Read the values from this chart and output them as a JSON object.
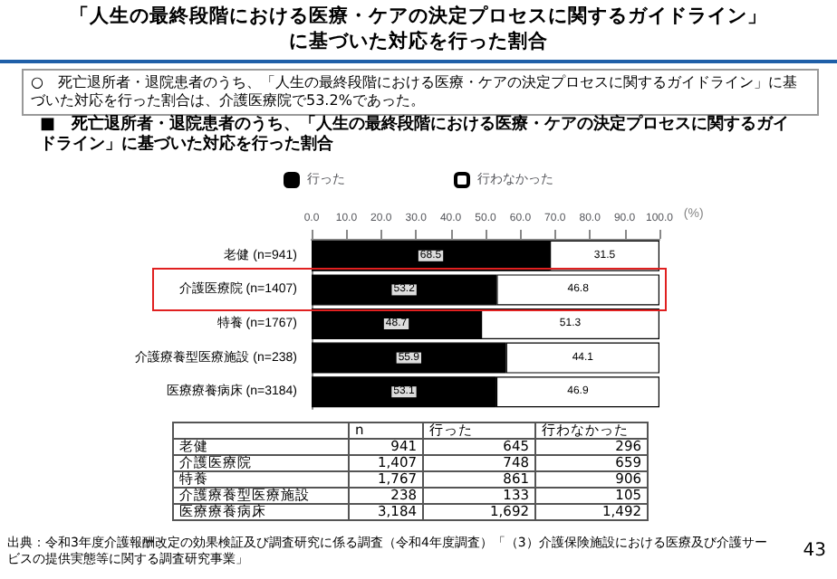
{
  "chart_data": {
    "type": "bar",
    "orientation": "horizontal",
    "stacked": true,
    "title": "「人生の最終段階における医療・ケアの決定プロセスに関するガイドライン」に基づいた対応を行った割合",
    "subtitle": "■　死亡退所者・退院患者のうち、「人生の最終段階における医療・ケアの決定プロセスに関するガイドライン」に基づいた対応を行った割合",
    "xlabel": "(%)",
    "categories": [
      "老健 (n=941)",
      "介護医療院 (n=1407)",
      "特養 (n=1767)",
      "介護療養型医療施設 (n=238)",
      "医療療養病床 (n=3184)"
    ],
    "series": [
      {
        "name": "行った",
        "color": "#000000",
        "values": [
          68.5,
          53.2,
          48.7,
          55.9,
          53.1
        ]
      },
      {
        "name": "行わなかった",
        "color": "#ffffff",
        "values": [
          31.5,
          46.8,
          51.3,
          44.1,
          46.9
        ]
      }
    ],
    "xlim": [
      0,
      100
    ],
    "xticks": [
      {
        "value": 0,
        "label": "0.0"
      },
      {
        "value": 10,
        "label": "10.0"
      },
      {
        "value": 20,
        "label": "20.0"
      },
      {
        "value": 30,
        "label": "30.0"
      },
      {
        "value": 40,
        "label": "40.0"
      },
      {
        "value": 50,
        "label": "50.0"
      },
      {
        "value": 60,
        "label": "60.0"
      },
      {
        "value": 70,
        "label": "70.0"
      },
      {
        "value": 80,
        "label": "80.0"
      },
      {
        "value": 90,
        "label": "90.0"
      },
      {
        "value": 100,
        "label": "100.0"
      }
    ],
    "data_labels": true,
    "legend": "top",
    "grid": false,
    "annotations": [
      "○　死亡退所者・退院患者のうち、「人生の最終段階における医療・ケアの決定プロセスに関するガイドライン」に基づいた対応を行った割合は、介護医療院で53.2%であった。",
      "n",
      "行った",
      "行わなかった",
      "老健",
      "941",
      "645",
      "296",
      "介護医療院",
      "1,407",
      "748",
      "659",
      "特養",
      "1,767",
      "861",
      "906",
      "介護療養型医療施設",
      "238",
      "133",
      "105",
      "医療療養病床",
      "3,184",
      "1,692",
      "1,492",
      "出典：令和3年度介護報酬改定の効果検証及び調査研究に係る調査（令和4年度調査）「（3）介護保険施設における医療及び介護サービスの提供実態等に関する調査研究事業」",
      "43"
    ]
  }
}
